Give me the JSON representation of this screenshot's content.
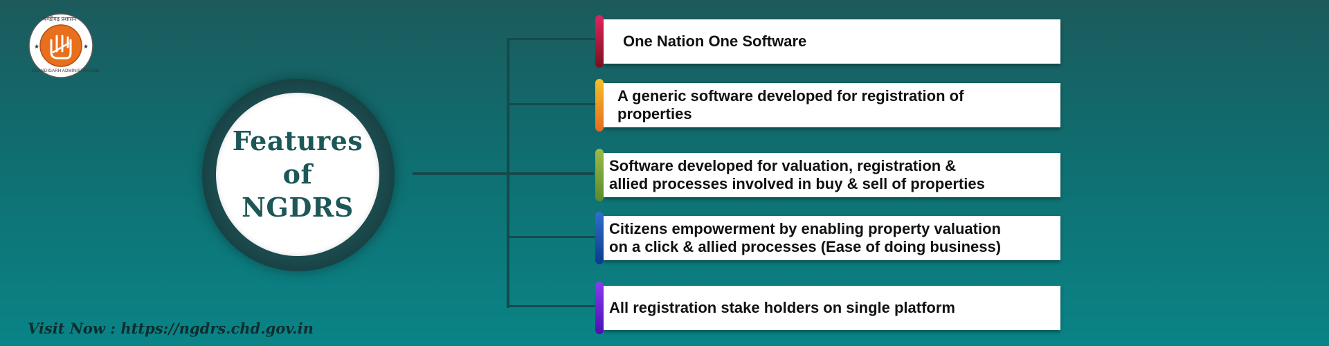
{
  "logo": {
    "top_text": "चण्डीगढ़ प्रशासन",
    "bottom_text": "CHANDIGARH ADMINISTRATION"
  },
  "circle": {
    "title": "Features\nof\nNGDRS"
  },
  "features": [
    {
      "text": "One Nation One Software",
      "accent": [
        "#e0245e",
        "#7a1020"
      ],
      "indent": 28
    },
    {
      "text": "A generic software developed for registration of\nproperties",
      "accent": [
        "#f3c12a",
        "#e86a1e"
      ],
      "indent": 20
    },
    {
      "text": "Software developed for valuation, registration &\nallied processes involved in buy & sell of properties",
      "accent": [
        "#9bbb4a",
        "#5a8a2c"
      ],
      "indent": 8
    },
    {
      "text": "Citizens empowerment by enabling property valuation\non a click & allied processes (Ease of doing business)",
      "accent": [
        "#2f6fd0",
        "#0c3a8a"
      ],
      "indent": 8
    },
    {
      "text": "All registration stake holders on single platform",
      "accent": [
        "#8a3cf0",
        "#4a10b0"
      ],
      "indent": 8
    }
  ],
  "footer": {
    "visit": "Visit Now : https://ngdrs.chd.gov.in"
  }
}
